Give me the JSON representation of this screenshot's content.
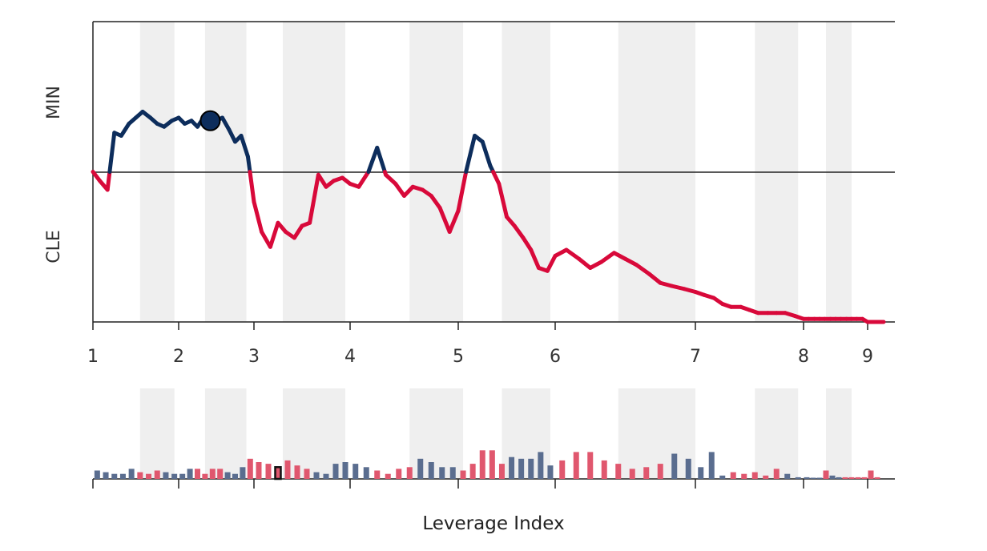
{
  "chart_data": [
    {
      "type": "line",
      "description_free": true,
      "top_label": "MIN",
      "bottom_label": "CLE",
      "x_tick_labels": [
        "1",
        "2",
        "3",
        "4",
        "5",
        "6",
        "7",
        "8",
        "9"
      ],
      "x_tick_values": [
        1,
        2,
        3,
        4,
        5,
        6,
        7,
        8,
        9
      ],
      "xlim": [
        1,
        9.25
      ],
      "ylim": [
        -50,
        50
      ],
      "center_value": 0,
      "colors": {
        "above": "#0d2d5c",
        "below": "#d8093a",
        "shading": "#efefef",
        "axis": "#222222"
      },
      "shaded_ranges": [
        [
          1.55,
          1.95
        ],
        [
          2.35,
          2.9
        ],
        [
          3.3,
          3.95
        ],
        [
          4.55,
          5.05
        ],
        [
          5.45,
          5.95
        ],
        [
          6.45,
          7.0
        ],
        [
          7.55,
          7.95
        ],
        [
          8.35,
          8.75
        ]
      ],
      "x": [
        1.0,
        1.08,
        1.17,
        1.25,
        1.33,
        1.42,
        1.5,
        1.58,
        1.67,
        1.75,
        1.83,
        1.92,
        2.0,
        2.08,
        2.17,
        2.25,
        2.33,
        2.42,
        2.5,
        2.58,
        2.67,
        2.75,
        2.83,
        2.92,
        3.0,
        3.08,
        3.17,
        3.25,
        3.33,
        3.42,
        3.5,
        3.58,
        3.67,
        3.75,
        3.83,
        3.92,
        4.0,
        4.08,
        4.17,
        4.25,
        4.33,
        4.42,
        4.5,
        4.58,
        4.67,
        4.75,
        4.83,
        4.92,
        5.0,
        5.08,
        5.17,
        5.25,
        5.33,
        5.42,
        5.5,
        5.58,
        5.67,
        5.75,
        5.83,
        5.92,
        6.0,
        6.08,
        6.17,
        6.25,
        6.33,
        6.42,
        6.5,
        6.58,
        6.67,
        6.75,
        6.83,
        6.92,
        7.0,
        7.08,
        7.17,
        7.25,
        7.33,
        7.42,
        7.5,
        7.58,
        7.67,
        7.75,
        7.83,
        7.92,
        8.0,
        8.08,
        8.17,
        8.25,
        8.33,
        8.42,
        8.5,
        8.58,
        8.67,
        8.75,
        8.83,
        8.92,
        9.0,
        9.08,
        9.17,
        9.25
      ],
      "y": [
        0,
        -3,
        -6,
        13,
        12,
        16,
        18,
        20,
        18,
        16,
        15,
        17,
        18,
        16,
        17,
        15,
        18,
        16,
        17,
        18,
        14,
        10,
        12,
        5,
        -10,
        -20,
        -25,
        -17,
        -20,
        -22,
        -18,
        -17,
        -1,
        -5,
        -3,
        -2,
        -4,
        -5,
        0,
        8,
        -1,
        -4,
        -8,
        -5,
        -6,
        -8,
        -12,
        -20,
        -13,
        0,
        12,
        10,
        2,
        -4,
        -15,
        -18,
        -22,
        -26,
        -32,
        -33,
        -28,
        -26,
        -29,
        -32,
        -30,
        -27,
        -29,
        -31,
        -34,
        -37,
        -38,
        -39,
        -40,
        -41,
        -42,
        -44,
        -45,
        -45,
        -46,
        -47,
        -47,
        -47,
        -47,
        -48,
        -49,
        -49,
        -49,
        -49,
        -49,
        -49,
        -49,
        -49,
        -49,
        -49,
        -49,
        -49,
        -50,
        -50,
        -50,
        -50
      ],
      "marker": {
        "x": 2.42,
        "y": 17
      }
    },
    {
      "type": "bar",
      "xlabel": "Leverage Index",
      "x_tick_values": [
        1,
        2,
        3,
        4,
        5,
        6,
        7,
        8,
        9
      ],
      "xlim": [
        1,
        9.25
      ],
      "colors": {
        "above": "#5a6d8f",
        "below": "#e0576e",
        "shading": "#efefef",
        "highlight_border": "#111111"
      },
      "shaded_ranges": [
        [
          1.55,
          1.95
        ],
        [
          2.35,
          2.9
        ],
        [
          3.3,
          3.95
        ],
        [
          4.55,
          5.05
        ],
        [
          5.45,
          5.95
        ],
        [
          6.45,
          7.0
        ],
        [
          7.55,
          7.95
        ],
        [
          8.35,
          8.75
        ]
      ],
      "highlight_index": 22,
      "x": [
        1.05,
        1.15,
        1.25,
        1.35,
        1.45,
        1.55,
        1.65,
        1.75,
        1.85,
        1.95,
        2.05,
        2.15,
        2.25,
        2.35,
        2.45,
        2.55,
        2.65,
        2.75,
        2.85,
        2.95,
        3.05,
        3.15,
        3.25,
        3.35,
        3.45,
        3.55,
        3.65,
        3.75,
        3.85,
        3.95,
        4.05,
        4.15,
        4.25,
        4.35,
        4.45,
        4.55,
        4.65,
        4.75,
        4.85,
        4.95,
        5.05,
        5.15,
        5.25,
        5.35,
        5.45,
        5.55,
        5.65,
        5.75,
        5.85,
        5.95,
        6.05,
        6.15,
        6.25,
        6.35,
        6.45,
        6.55,
        6.65,
        6.75,
        6.85,
        6.95,
        7.05,
        7.15,
        7.25,
        7.35,
        7.45,
        7.55,
        7.65,
        7.75,
        7.85,
        7.95,
        8.05,
        8.15,
        8.25,
        8.35,
        8.45,
        8.55,
        8.65,
        8.75,
        8.85,
        8.95,
        9.05,
        9.15
      ],
      "values": [
        5,
        4,
        3,
        3,
        6,
        -4,
        -3,
        -5,
        4,
        3,
        3,
        6,
        -6,
        -3,
        -6,
        -6,
        4,
        3,
        7,
        -12,
        -10,
        -9,
        -7,
        -11,
        -8,
        -6,
        4,
        3,
        9,
        10,
        9,
        7,
        -5,
        -3,
        -6,
        -7,
        12,
        10,
        7,
        7,
        -5,
        -9,
        -17,
        -17,
        -9,
        13,
        12,
        12,
        16,
        8,
        -11,
        -16,
        -16,
        -11,
        -9,
        -6,
        -7,
        -9,
        15,
        12,
        7,
        16,
        2,
        -4,
        -3,
        -4,
        -2,
        -6,
        3,
        1,
        1,
        0,
        0,
        -5,
        2,
        1,
        -1,
        -1,
        -1,
        -1,
        -5,
        -1
      ],
      "ylim": [
        -20,
        20
      ]
    }
  ]
}
